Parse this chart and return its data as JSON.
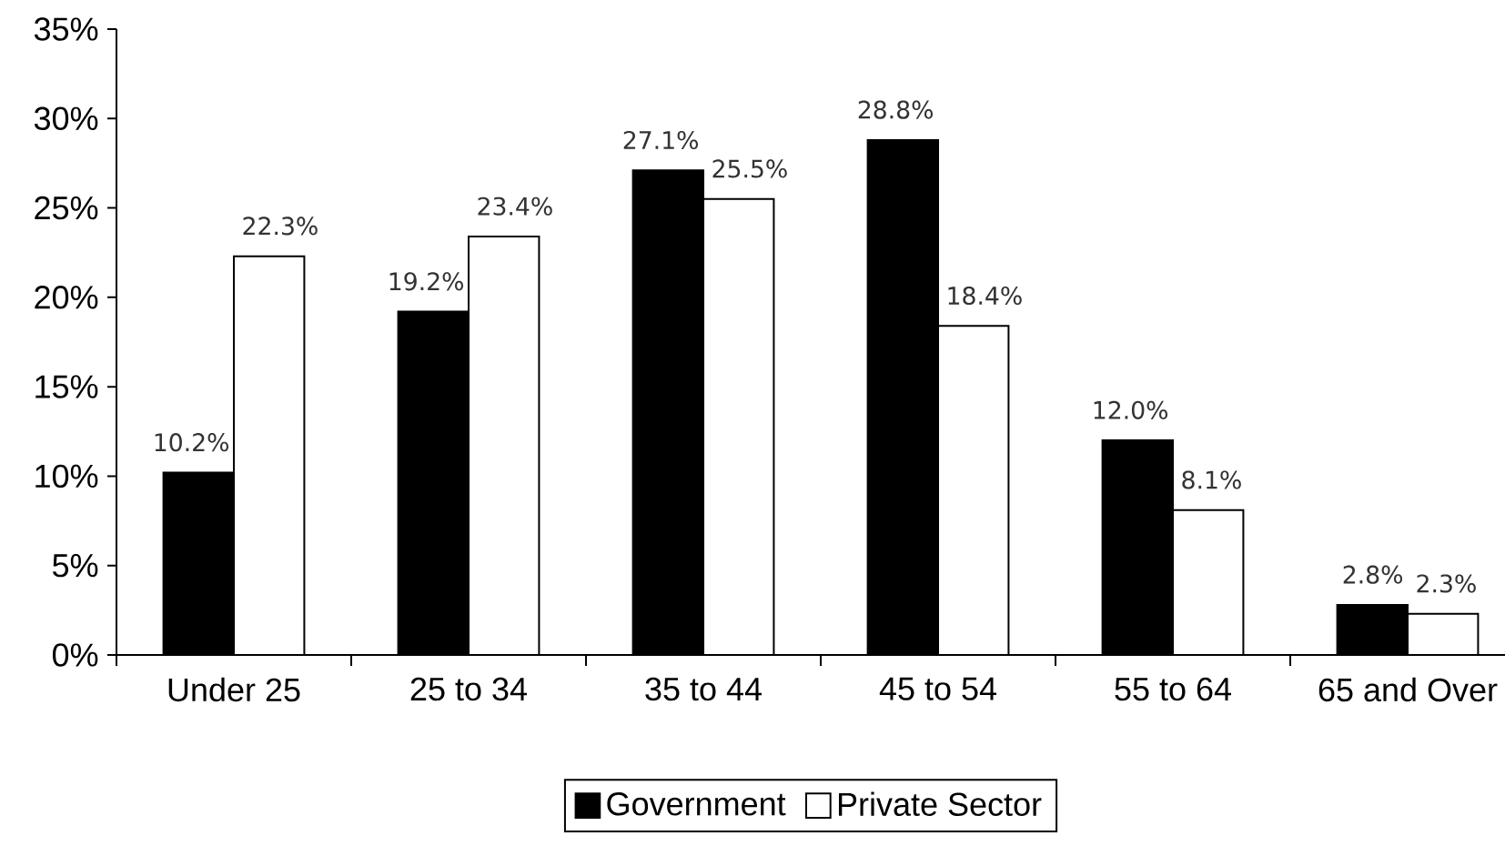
{
  "chart_data": {
    "type": "bar",
    "categories": [
      "Under 25",
      "25 to 34",
      "35 to 44",
      "45 to 54",
      "55 to 64",
      "65 and Over"
    ],
    "series": [
      {
        "name": "Government",
        "color": "#000000",
        "values": [
          10.2,
          19.2,
          27.1,
          28.8,
          12.0,
          2.8
        ],
        "value_labels": [
          "10.2%",
          "19.2%",
          "27.1%",
          "28.8%",
          "12.0%",
          "2.8%"
        ]
      },
      {
        "name": "Private Sector",
        "color": "#ffffff",
        "values": [
          22.3,
          23.4,
          25.5,
          18.4,
          8.1,
          2.3
        ],
        "value_labels": [
          "22.3%",
          "23.4%",
          "25.5%",
          "18.4%",
          "8.1%",
          "2.3%"
        ]
      }
    ],
    "ylim": [
      0,
      35
    ],
    "yticks": [
      {
        "value": 0,
        "label": "0%"
      },
      {
        "value": 5,
        "label": "5%"
      },
      {
        "value": 10,
        "label": "10%"
      },
      {
        "value": 15,
        "label": "15%"
      },
      {
        "value": 20,
        "label": "20%"
      },
      {
        "value": 25,
        "label": "25%"
      },
      {
        "value": 30,
        "label": "30%"
      },
      {
        "value": 35,
        "label": "35%"
      }
    ],
    "grid": false,
    "legend": "bottom"
  }
}
